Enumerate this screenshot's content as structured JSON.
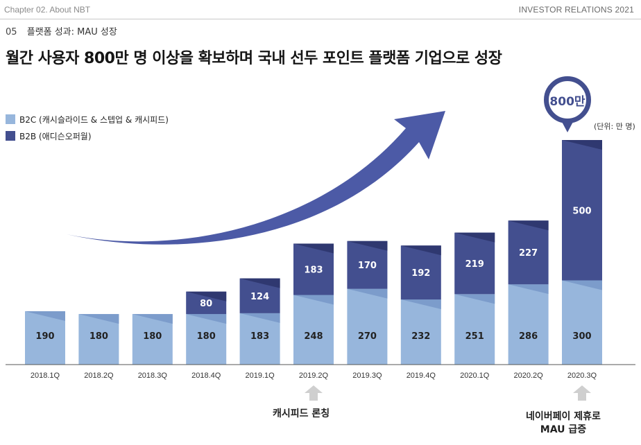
{
  "header": {
    "chapter": "Chapter 02. About NBT",
    "right": "INVESTOR RELATIONS 2021"
  },
  "subsection": {
    "num": "05",
    "label": "플랫폼 성과: MAU 성장"
  },
  "title": "월간 사용자 800만 명 이상을 확보하며 국내 선두 포인트 플랫폼 기업으로 성장",
  "unit_label": "(단위: 만 명)",
  "callout_label": "800만",
  "notes": {
    "launch": "캐시피드 론칭",
    "partner_line1": "네이버페이 제휴로",
    "partner_line2": "MAU 급증"
  },
  "colors": {
    "b2c": "#97b6dc",
    "b2c_dark": "#7c9ccb",
    "b2b": "#434f8f",
    "b2b_dark": "#2f3870",
    "arrow": "#4c5aa6",
    "up_arrow": "#cfcfcf"
  },
  "chart_data": {
    "type": "bar",
    "stacked": true,
    "categories": [
      "2018.1Q",
      "2018.2Q",
      "2018.3Q",
      "2018.4Q",
      "2019.1Q",
      "2019.2Q",
      "2019.3Q",
      "2019.4Q",
      "2020.1Q",
      "2020.2Q",
      "2020.3Q"
    ],
    "series": [
      {
        "name": "B2C (캐시슬라이드 & 스텝업 & 캐시피드)",
        "values": [
          190,
          180,
          180,
          180,
          183,
          248,
          270,
          232,
          251,
          286,
          300
        ]
      },
      {
        "name": "B2B (애디슨오퍼월)",
        "values": [
          0,
          0,
          0,
          80,
          124,
          183,
          170,
          192,
          219,
          227,
          500
        ]
      }
    ],
    "ylim": [
      0,
      820
    ],
    "legend": "top-left"
  }
}
